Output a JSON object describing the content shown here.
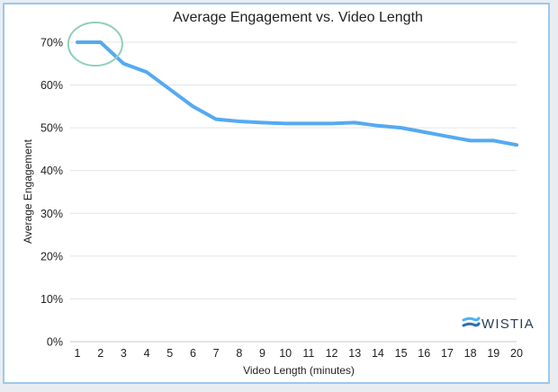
{
  "chart_data": {
    "type": "line",
    "title": "Average Engagement vs. Video Length",
    "xlabel": "Video Length (minutes)",
    "ylabel": "Average Engagement",
    "x": [
      1,
      2,
      3,
      4,
      5,
      6,
      7,
      8,
      9,
      10,
      11,
      12,
      13,
      14,
      15,
      16,
      17,
      18,
      19,
      20
    ],
    "x_tick_labels": [
      "1",
      "2",
      "3",
      "4",
      "5",
      "6",
      "7",
      "8",
      "9",
      "10",
      "11",
      "12",
      "13",
      "14",
      "15",
      "16",
      "17",
      "18",
      "19",
      "20"
    ],
    "y_tick_labels": [
      "0%",
      "10%",
      "20%",
      "30%",
      "40%",
      "50%",
      "60%",
      "70%"
    ],
    "y_ticks": [
      0,
      10,
      20,
      30,
      40,
      50,
      60,
      70
    ],
    "ylim": [
      0,
      70
    ],
    "series": [
      {
        "values": [
          70,
          70,
          65,
          63,
          59,
          55,
          52,
          51.5,
          51.2,
          51,
          51,
          51,
          51.2,
          50.5,
          50,
          49,
          48,
          47,
          47,
          46
        ],
        "color": "#55aaf0"
      }
    ],
    "grid": true,
    "highlight_x": [
      1,
      2
    ],
    "highlight_color": "#8fd0b5",
    "logo": "WISTIA",
    "logo_color": "#2a3f55",
    "logo_icon": "wistia-wave-icon"
  }
}
